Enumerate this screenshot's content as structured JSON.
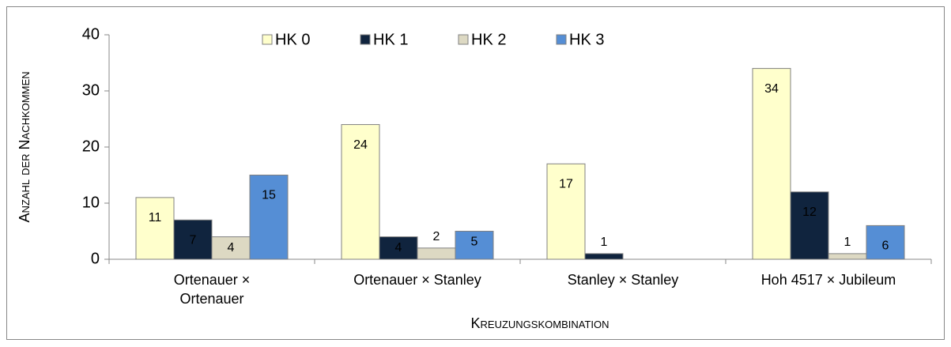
{
  "chart_data": {
    "type": "bar",
    "categories": [
      "Ortenauer ×\nOrtenauer",
      "Ortenauer × Stanley",
      "Stanley × Stanley",
      "Hoh 4517 × Jubileum"
    ],
    "series": [
      {
        "name": "HK 0",
        "color": "#ffffcc",
        "values": [
          11,
          24,
          17,
          34
        ]
      },
      {
        "name": "HK 1",
        "color": "#10243e",
        "values": [
          7,
          4,
          1,
          12
        ]
      },
      {
        "name": "HK 2",
        "color": "#ddd9c3",
        "values": [
          4,
          2,
          null,
          1
        ]
      },
      {
        "name": "HK 3",
        "color": "#558ed5",
        "values": [
          15,
          5,
          null,
          6
        ]
      }
    ],
    "y_label": "Anzahl der Nachkommen",
    "x_label": "Kreuzungskombination",
    "ylim": [
      0,
      40
    ],
    "yticks": [
      0,
      10,
      20,
      30,
      40
    ],
    "grid": false,
    "legend": "top"
  }
}
